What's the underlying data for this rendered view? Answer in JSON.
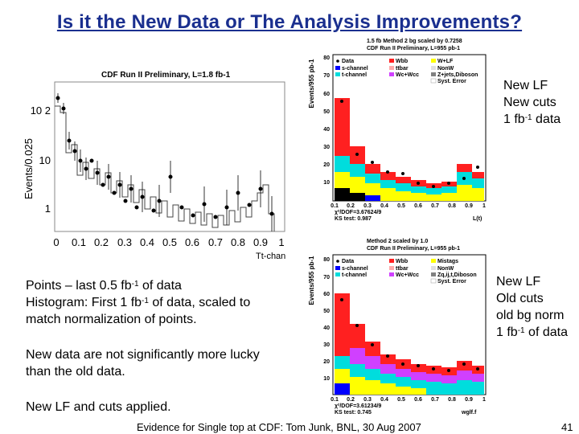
{
  "slide": {
    "title": "Is it the New Data or The Analysis Improvements?",
    "footer": "Evidence for Single top at CDF: Tom Junk, BNL, 30 Aug 2007",
    "page_number": "41"
  },
  "left_plot": {
    "title": "CDF Run II Preliminary, L=1.8 fb-1",
    "ylabel": "Events/0.025",
    "xlabel": "Tt-chan",
    "y_ticks": [
      "10 2",
      "10",
      "1"
    ],
    "x_ticks": [
      "0",
      "0.1",
      "0.2",
      "0.3",
      "0.4",
      "0.5",
      "0.6",
      "0.7",
      "0.8",
      "0.9",
      "1"
    ]
  },
  "top_right_plot": {
    "header1": "1.5 fb Method 2 bg scaled by 0.7258",
    "header2": "CDF Run II Preliminary, L=955 pb-1",
    "ylabel": "Events/955 pb-1",
    "y_ticks": [
      "80",
      "70",
      "60",
      "50",
      "40",
      "30",
      "20",
      "10"
    ],
    "x_ticks": [
      "0.1",
      "0.2",
      "0.3",
      "0.4",
      "0.5",
      "0.6",
      "0.7",
      "0.8",
      "0.9",
      "1"
    ],
    "xlabel": "L(t)",
    "stat1": "χ²/DOF=3.67624/9",
    "stat2": "KS test: 0.987",
    "legend": [
      "Data",
      "s-channel",
      "t-channel",
      "Wbb",
      "ttbar",
      "Wc+Wcc",
      "W+LF",
      "NonW",
      "Z+jets,Diboson",
      "Syst. Error"
    ]
  },
  "bottom_right_plot": {
    "header1": "Method 2 scaled by 1.0",
    "header2": "CDF Run II Preliminary, L=955 pb-1",
    "ylabel": "Events/955 pb-1",
    "y_ticks": [
      "80",
      "70",
      "60",
      "50",
      "40",
      "30",
      "20",
      "10"
    ],
    "x_ticks": [
      "0.1",
      "0.2",
      "0.3",
      "0.4",
      "0.5",
      "0.6",
      "0.7",
      "0.8",
      "0.9",
      "1"
    ],
    "xlabel": "wglf.f",
    "stat1": "χ²/DOF=3.61234/9",
    "stat2": "KS test: 0.745",
    "legend": [
      "Data",
      "s-channel",
      "t-channel",
      "Wbb",
      "ttbar",
      "Wc+Wcc",
      "Mistags",
      "NonW",
      "Zq,ij,t,Diboson",
      "Syst. Error"
    ]
  },
  "notes": {
    "top_right": {
      "line1": "New LF",
      "line2": "New cuts",
      "line3_pre": "1 fb",
      "line3_sup": "-1",
      "line3_post": " data"
    },
    "bottom_right": {
      "line1": "New LF",
      "line2": "Old cuts",
      "line3": "old bg norm",
      "line4_pre": "1 fb",
      "line4_sup": "-1",
      "line4_post": " of data"
    },
    "points": {
      "l1_pre": "Points – last 0.5 fb",
      "l1_sup": "-1",
      "l1_post": " of data",
      "l2_pre": "Histogram: First 1 fb",
      "l2_sup": "-1",
      "l2_post": " of data, scaled to",
      "l3": "match normalization of points."
    },
    "lucky": {
      "l1": "New data are not significantly more lucky",
      "l2": "than the old data."
    },
    "applied": "New LF and cuts applied."
  },
  "colors": {
    "title": "#1a2f8f",
    "wbb": "#ff2020",
    "ttbar": "#ffaaaa",
    "wlf": "#ffff00",
    "tchan": "#00dddd",
    "schan": "#0000ff",
    "wcc": "#d040ff",
    "nonw": "#e0e0e0",
    "diboson": "#000000"
  }
}
